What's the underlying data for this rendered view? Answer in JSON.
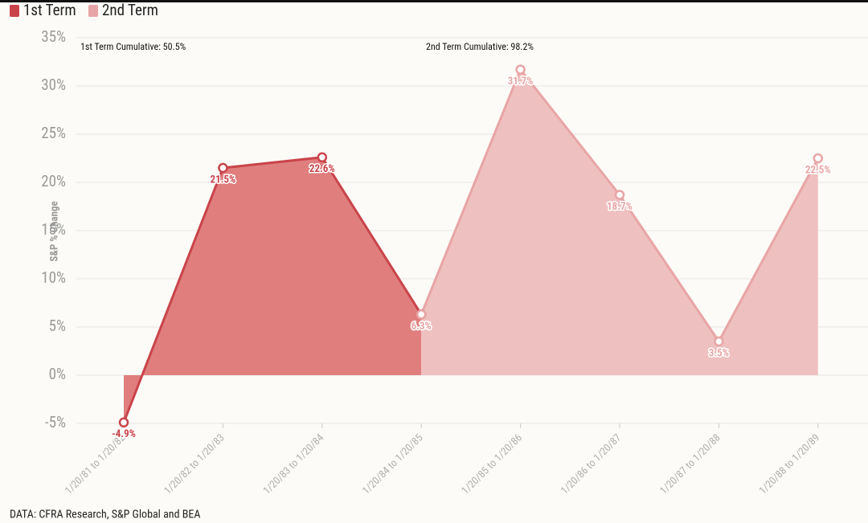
{
  "chart_data": {
    "type": "area",
    "categories": [
      "1/20/81 to 1/20/82",
      "1/20/82 to 1/20/83",
      "1/20/83 to 1/20/84",
      "1/20/84 to 1/20/85",
      "1/20/85 to 1/20/86",
      "1/20/86 to 1/20/87",
      "1/20/87 to 1/20/88",
      "1/20/88 to 1/20/89"
    ],
    "series": [
      {
        "name": "1st Term",
        "color": "#c9444a",
        "fill": "#e07e7e",
        "values": [
          -4.9,
          21.5,
          22.6,
          6.3,
          null,
          null,
          null,
          null
        ],
        "value_labels": [
          "-4.9%",
          "21.5%",
          "22.6%",
          null,
          null,
          null,
          null,
          null
        ]
      },
      {
        "name": "2nd Term",
        "color": "#e8a5a5",
        "fill": "#efc0c0",
        "values": [
          null,
          null,
          null,
          6.3,
          31.7,
          18.7,
          3.5,
          22.5
        ],
        "value_labels": [
          null,
          null,
          null,
          "6.3%",
          "31.7%",
          "18.7%",
          "3.5%",
          "22.5%"
        ]
      }
    ],
    "ylabel": "S&P % Change",
    "ylim": [
      -5,
      35
    ],
    "yticks": [
      {
        "value": -5,
        "label": "-5%"
      },
      {
        "value": 0,
        "label": "0%"
      },
      {
        "value": 5,
        "label": "5%"
      },
      {
        "value": 10,
        "label": "10%"
      },
      {
        "value": 15,
        "label": "15%"
      },
      {
        "value": 20,
        "label": "20%"
      },
      {
        "value": 25,
        "label": "25%"
      },
      {
        "value": 30,
        "label": "30%"
      },
      {
        "value": 35,
        "label": "35%"
      }
    ],
    "grid": true,
    "legend": "top-left",
    "annotations": [
      "1st Term Cumulative: 50.5%",
      "2nd Term Cumulative: 98.2%"
    ],
    "source": "DATA: CFRA Research, S&P Global and BEA"
  }
}
